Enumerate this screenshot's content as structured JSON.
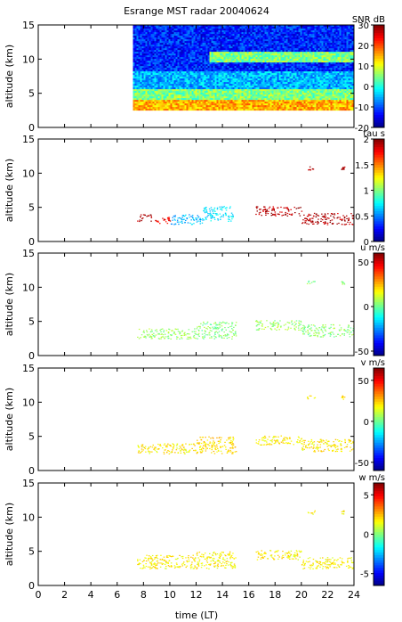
{
  "chart_data": {
    "type": "heatmap",
    "title": "Esrange MST radar 20040624",
    "xlabel": "time (LT)",
    "xlim": [
      0,
      24
    ],
    "xticks": [
      0,
      2,
      4,
      6,
      8,
      10,
      12,
      14,
      16,
      18,
      20,
      22,
      24
    ],
    "panels": [
      {
        "id": "snr",
        "ylabel": "altitude (km)",
        "ylim": [
          0,
          15
        ],
        "yticks": [
          0,
          5,
          10,
          15
        ],
        "colorbar_label": "SNR dB",
        "clim": [
          -20,
          30
        ],
        "cticks": [
          -20,
          -10,
          0,
          10,
          20,
          30
        ],
        "data_region": {
          "t_start": 7.2,
          "t_end": 24,
          "alt_start": 2.5,
          "alt_end": 15
        },
        "features": [
          {
            "t": [
              7.2,
              24
            ],
            "alt": [
              2.5,
              4.0
            ],
            "value": 15
          },
          {
            "t": [
              7.2,
              24
            ],
            "alt": [
              4.0,
              5.5
            ],
            "value": 5
          },
          {
            "t": [
              7.2,
              24
            ],
            "alt": [
              5.5,
              8.0
            ],
            "value": -5
          },
          {
            "t": [
              13.0,
              24
            ],
            "alt": [
              9.5,
              11.0
            ],
            "value": 5
          },
          {
            "t": [
              7.2,
              24
            ],
            "alt": [
              8.0,
              15.0
            ],
            "value": -12
          }
        ]
      },
      {
        "id": "tau",
        "ylabel": "altitude (km)",
        "ylim": [
          0,
          15
        ],
        "yticks": [
          0,
          5,
          10,
          15
        ],
        "colorbar_label": "tau s",
        "clim": [
          0,
          2
        ],
        "cticks": [
          0,
          0.5,
          1,
          1.5,
          2
        ],
        "segments": [
          {
            "t": [
              7.5,
              8.6
            ],
            "alt": [
              3.0,
              4.0
            ],
            "value": 1.9
          },
          {
            "t": [
              8.6,
              10.0
            ],
            "alt": [
              2.7,
              3.6
            ],
            "value": 1.8
          },
          {
            "t": [
              10.0,
              12.5
            ],
            "alt": [
              2.5,
              4.0
            ],
            "value": 0.6
          },
          {
            "t": [
              12.5,
              14.8
            ],
            "alt": [
              3.0,
              5.2
            ],
            "value": 0.7
          },
          {
            "t": [
              16.5,
              20.0
            ],
            "alt": [
              3.8,
              5.2
            ],
            "value": 1.9
          },
          {
            "t": [
              20.0,
              24.0
            ],
            "alt": [
              2.5,
              4.2
            ],
            "value": 1.9
          },
          {
            "t": [
              20.4,
              21.0
            ],
            "alt": [
              10.5,
              11.0
            ],
            "value": 1.9
          },
          {
            "t": [
              23.0,
              23.3
            ],
            "alt": [
              10.5,
              11.0
            ],
            "value": 1.9
          }
        ]
      },
      {
        "id": "u",
        "ylabel": "altitude (km)",
        "ylim": [
          0,
          15
        ],
        "yticks": [
          0,
          5,
          10,
          15
        ],
        "colorbar_label": "u m/s",
        "clim": [
          -55,
          60
        ],
        "cticks": [
          -50,
          0,
          50
        ],
        "segments": [
          {
            "t": [
              7.5,
              12.0
            ],
            "alt": [
              2.5,
              4.0
            ],
            "value": 5
          },
          {
            "t": [
              12.0,
              15.0
            ],
            "alt": [
              2.5,
              5.0
            ],
            "value": 3
          },
          {
            "t": [
              16.5,
              20.0
            ],
            "alt": [
              3.8,
              5.2
            ],
            "value": 6
          },
          {
            "t": [
              20.0,
              24.0
            ],
            "alt": [
              2.8,
              4.6
            ],
            "value": 4
          },
          {
            "t": [
              20.4,
              21.0
            ],
            "alt": [
              10.5,
              11.0
            ],
            "value": 2
          },
          {
            "t": [
              23.0,
              23.3
            ],
            "alt": [
              10.5,
              11.0
            ],
            "value": 2
          }
        ]
      },
      {
        "id": "v",
        "ylabel": "altitude (km)",
        "ylim": [
          0,
          15
        ],
        "yticks": [
          0,
          5,
          10,
          15
        ],
        "colorbar_label": "v m/s",
        "clim": [
          -60,
          65
        ],
        "cticks": [
          -50,
          0,
          50
        ],
        "segments": [
          {
            "t": [
              7.5,
              12.0
            ],
            "alt": [
              2.5,
              4.0
            ],
            "value": 20
          },
          {
            "t": [
              12.0,
              15.0
            ],
            "alt": [
              2.5,
              5.0
            ],
            "value": 22
          },
          {
            "t": [
              16.5,
              20.0
            ],
            "alt": [
              3.8,
              5.2
            ],
            "value": 20
          },
          {
            "t": [
              20.0,
              24.0
            ],
            "alt": [
              2.8,
              4.6
            ],
            "value": 20
          },
          {
            "t": [
              20.4,
              21.0
            ],
            "alt": [
              10.5,
              11.0
            ],
            "value": 20
          },
          {
            "t": [
              23.0,
              23.3
            ],
            "alt": [
              10.5,
              11.0
            ],
            "value": 20
          }
        ]
      },
      {
        "id": "w",
        "ylabel": "altitude (km)",
        "ylim": [
          0,
          15
        ],
        "yticks": [
          0,
          5,
          10,
          15
        ],
        "colorbar_label": "w m/s",
        "clim": [
          -6.5,
          6.5
        ],
        "cticks": [
          -5,
          0,
          5
        ],
        "segments": [
          {
            "t": [
              7.5,
              12.0
            ],
            "alt": [
              2.5,
              4.5
            ],
            "value": 1.8
          },
          {
            "t": [
              12.0,
              15.0
            ],
            "alt": [
              2.5,
              5.0
            ],
            "value": 1.8
          },
          {
            "t": [
              16.5,
              20.0
            ],
            "alt": [
              3.8,
              5.2
            ],
            "value": 1.8
          },
          {
            "t": [
              20.0,
              24.0
            ],
            "alt": [
              2.5,
              4.2
            ],
            "value": 1.8
          },
          {
            "t": [
              20.4,
              21.0
            ],
            "alt": [
              10.5,
              11.0
            ],
            "value": 1.8
          },
          {
            "t": [
              23.0,
              23.3
            ],
            "alt": [
              10.5,
              11.0
            ],
            "value": 1.8
          }
        ]
      }
    ]
  }
}
